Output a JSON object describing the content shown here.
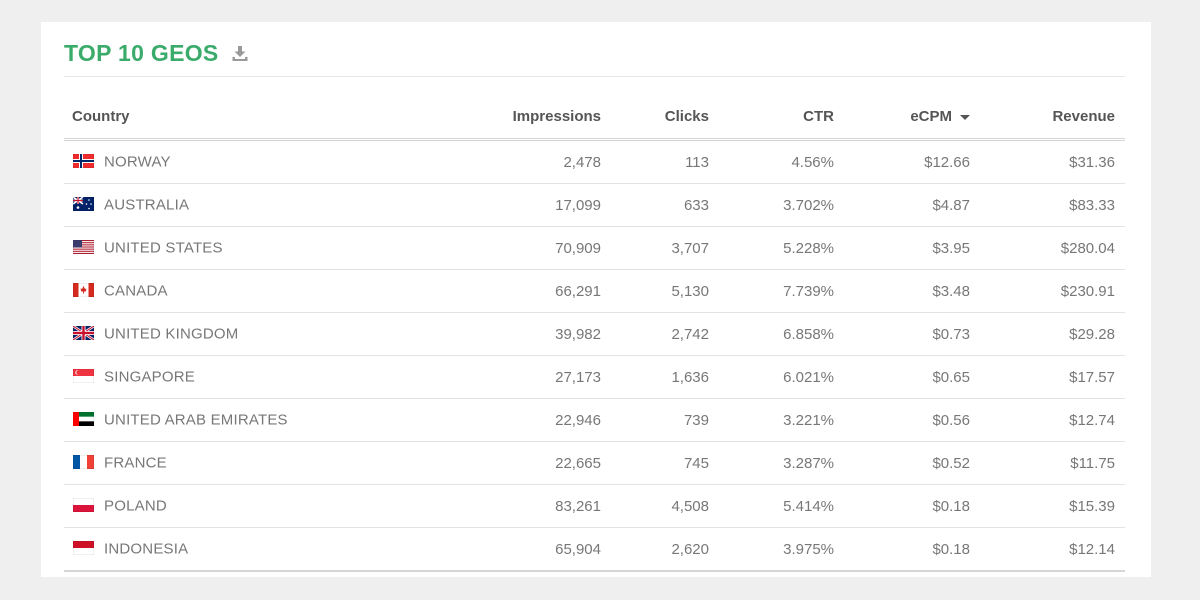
{
  "title": "TOP 10 GEOS",
  "colors": {
    "title": "#3aab6a",
    "background": "#efefef",
    "card": "#ffffff"
  },
  "icons": {
    "download": "download-icon",
    "sort": "caret-down-icon"
  },
  "columns": {
    "country": "Country",
    "impressions": "Impressions",
    "clicks": "Clicks",
    "ctr": "CTR",
    "ecpm": "eCPM",
    "revenue": "Revenue"
  },
  "sort": {
    "column": "ecpm",
    "direction": "desc"
  },
  "rows": [
    {
      "flag": "norway-flag-icon",
      "country": "NORWAY",
      "impressions": "2,478",
      "clicks": "113",
      "ctr": "4.56%",
      "ecpm": "$12.66",
      "revenue": "$31.36"
    },
    {
      "flag": "australia-flag-icon",
      "country": "AUSTRALIA",
      "impressions": "17,099",
      "clicks": "633",
      "ctr": "3.702%",
      "ecpm": "$4.87",
      "revenue": "$83.33"
    },
    {
      "flag": "united-states-flag-icon",
      "country": "UNITED STATES",
      "impressions": "70,909",
      "clicks": "3,707",
      "ctr": "5.228%",
      "ecpm": "$3.95",
      "revenue": "$280.04"
    },
    {
      "flag": "canada-flag-icon",
      "country": "CANADA",
      "impressions": "66,291",
      "clicks": "5,130",
      "ctr": "7.739%",
      "ecpm": "$3.48",
      "revenue": "$230.91"
    },
    {
      "flag": "united-kingdom-flag-icon",
      "country": "UNITED KINGDOM",
      "impressions": "39,982",
      "clicks": "2,742",
      "ctr": "6.858%",
      "ecpm": "$0.73",
      "revenue": "$29.28"
    },
    {
      "flag": "singapore-flag-icon",
      "country": "SINGAPORE",
      "impressions": "27,173",
      "clicks": "1,636",
      "ctr": "6.021%",
      "ecpm": "$0.65",
      "revenue": "$17.57"
    },
    {
      "flag": "uae-flag-icon",
      "country": "UNITED ARAB EMIRATES",
      "impressions": "22,946",
      "clicks": "739",
      "ctr": "3.221%",
      "ecpm": "$0.56",
      "revenue": "$12.74"
    },
    {
      "flag": "france-flag-icon",
      "country": "FRANCE",
      "impressions": "22,665",
      "clicks": "745",
      "ctr": "3.287%",
      "ecpm": "$0.52",
      "revenue": "$11.75"
    },
    {
      "flag": "poland-flag-icon",
      "country": "POLAND",
      "impressions": "83,261",
      "clicks": "4,508",
      "ctr": "5.414%",
      "ecpm": "$0.18",
      "revenue": "$15.39"
    },
    {
      "flag": "indonesia-flag-icon",
      "country": "INDONESIA",
      "impressions": "65,904",
      "clicks": "2,620",
      "ctr": "3.975%",
      "ecpm": "$0.18",
      "revenue": "$12.14"
    }
  ]
}
